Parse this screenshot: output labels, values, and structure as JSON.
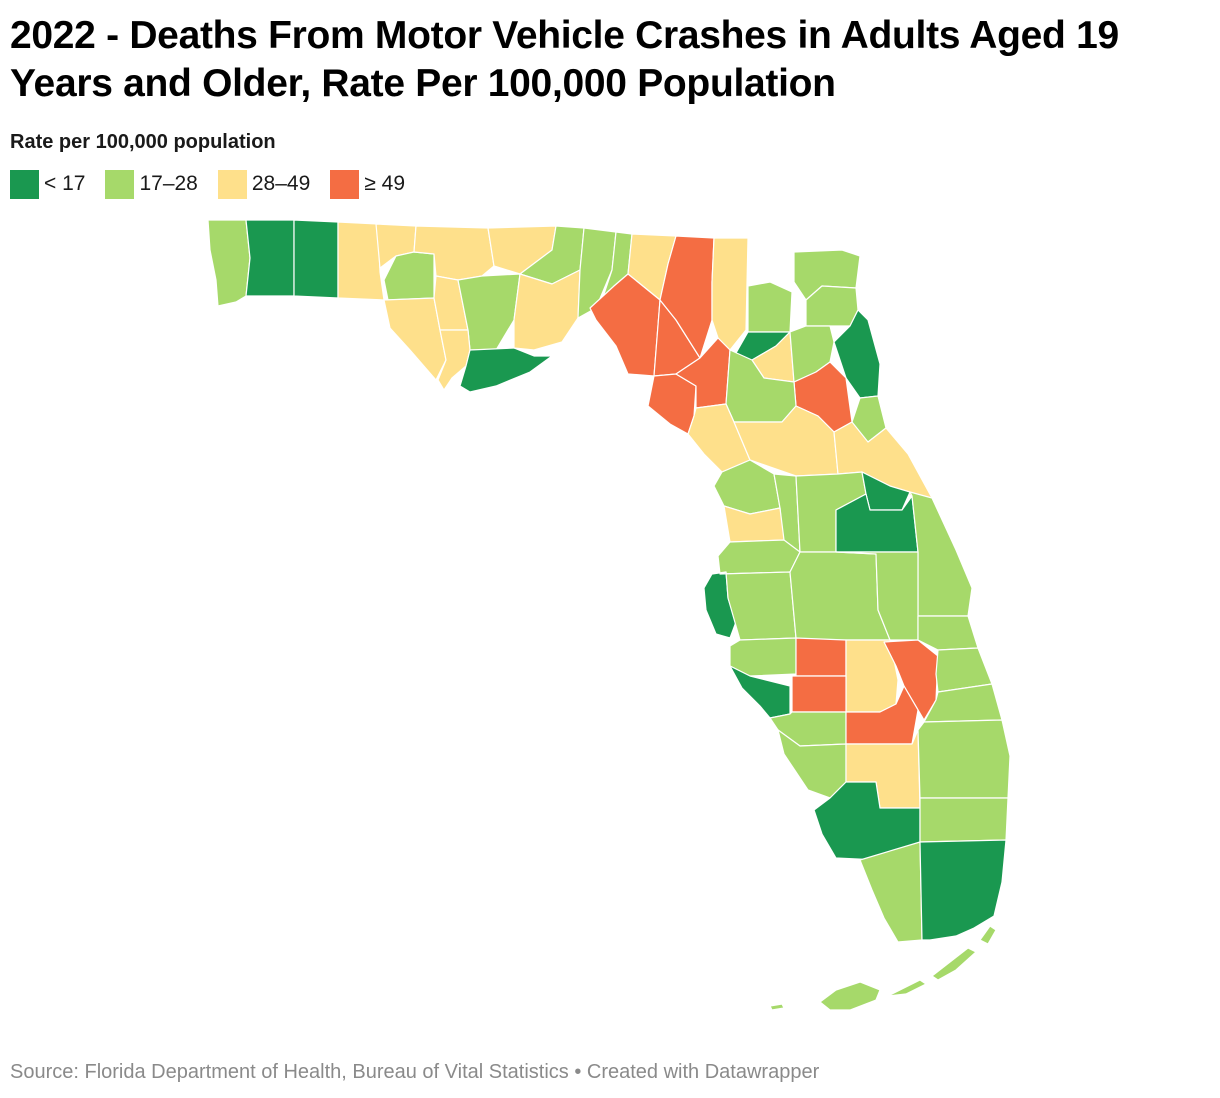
{
  "title": "2022 - Deaths From Motor Vehicle Crashes in Adults Aged 19 Years and Older, Rate Per 100,000 Population",
  "legend": {
    "title": "Rate per 100,000 population",
    "bins": [
      {
        "label": "< 17",
        "color": "#1a9850"
      },
      {
        "label": "17–28",
        "color": "#a6d96a"
      },
      {
        "label": "28–49",
        "color": "#fee08b"
      },
      {
        "label": "≥ 49",
        "color": "#f46d43"
      }
    ]
  },
  "map": {
    "region": "Florida",
    "counties": [
      {
        "id": "escambia",
        "bin": 1
      },
      {
        "id": "santa-rosa",
        "bin": 0
      },
      {
        "id": "okaloosa",
        "bin": 0
      },
      {
        "id": "walton",
        "bin": 2
      },
      {
        "id": "holmes",
        "bin": 2
      },
      {
        "id": "washington",
        "bin": 1
      },
      {
        "id": "jackson",
        "bin": 2
      },
      {
        "id": "bay",
        "bin": 2
      },
      {
        "id": "calhoun",
        "bin": 2
      },
      {
        "id": "gadsden",
        "bin": 2
      },
      {
        "id": "liberty",
        "bin": 1
      },
      {
        "id": "gulf",
        "bin": 2
      },
      {
        "id": "franklin",
        "bin": 0
      },
      {
        "id": "leon",
        "bin": 1
      },
      {
        "id": "wakulla",
        "bin": 2
      },
      {
        "id": "jefferson",
        "bin": 1
      },
      {
        "id": "madison",
        "bin": 1
      },
      {
        "id": "hamilton",
        "bin": 2
      },
      {
        "id": "taylor",
        "bin": 3
      },
      {
        "id": "lafayette",
        "bin": 3
      },
      {
        "id": "suwannee",
        "bin": 3
      },
      {
        "id": "columbia",
        "bin": 2
      },
      {
        "id": "dixie",
        "bin": 3
      },
      {
        "id": "gilchrist",
        "bin": 3
      },
      {
        "id": "baker",
        "bin": 1
      },
      {
        "id": "union",
        "bin": 0
      },
      {
        "id": "bradford",
        "bin": 2
      },
      {
        "id": "nassau",
        "bin": 1
      },
      {
        "id": "duval",
        "bin": 1
      },
      {
        "id": "clay",
        "bin": 1
      },
      {
        "id": "st-johns",
        "bin": 0
      },
      {
        "id": "putnam",
        "bin": 3
      },
      {
        "id": "alachua",
        "bin": 1
      },
      {
        "id": "levy",
        "bin": 2
      },
      {
        "id": "marion",
        "bin": 2
      },
      {
        "id": "flagler",
        "bin": 1
      },
      {
        "id": "volusia",
        "bin": 2
      },
      {
        "id": "citrus",
        "bin": 1
      },
      {
        "id": "sumter",
        "bin": 1
      },
      {
        "id": "lake",
        "bin": 1
      },
      {
        "id": "hernando",
        "bin": 2
      },
      {
        "id": "pasco",
        "bin": 1
      },
      {
        "id": "seminole",
        "bin": 0
      },
      {
        "id": "orange",
        "bin": 0
      },
      {
        "id": "brevard",
        "bin": 1
      },
      {
        "id": "pinellas",
        "bin": 0
      },
      {
        "id": "hillsborough",
        "bin": 1
      },
      {
        "id": "polk",
        "bin": 1
      },
      {
        "id": "osceola",
        "bin": 1
      },
      {
        "id": "manatee",
        "bin": 1
      },
      {
        "id": "hardee",
        "bin": 3
      },
      {
        "id": "highlands",
        "bin": 2
      },
      {
        "id": "okeechobee",
        "bin": 3
      },
      {
        "id": "indian-river",
        "bin": 1
      },
      {
        "id": "sarasota",
        "bin": 0
      },
      {
        "id": "desoto",
        "bin": 3
      },
      {
        "id": "st-lucie",
        "bin": 1
      },
      {
        "id": "martin",
        "bin": 1
      },
      {
        "id": "charlotte",
        "bin": 1
      },
      {
        "id": "glades",
        "bin": 3
      },
      {
        "id": "lee",
        "bin": 1
      },
      {
        "id": "hendry",
        "bin": 2
      },
      {
        "id": "palm-beach",
        "bin": 1
      },
      {
        "id": "collier",
        "bin": 0
      },
      {
        "id": "broward",
        "bin": 1
      },
      {
        "id": "monroe-mainland",
        "bin": 1
      },
      {
        "id": "miami-dade",
        "bin": 0
      },
      {
        "id": "monroe-keys",
        "bin": 1
      }
    ]
  },
  "footer": {
    "source": "Source: Florida Department of Health, Bureau of Vital Statistics • Created with Datawrapper"
  }
}
